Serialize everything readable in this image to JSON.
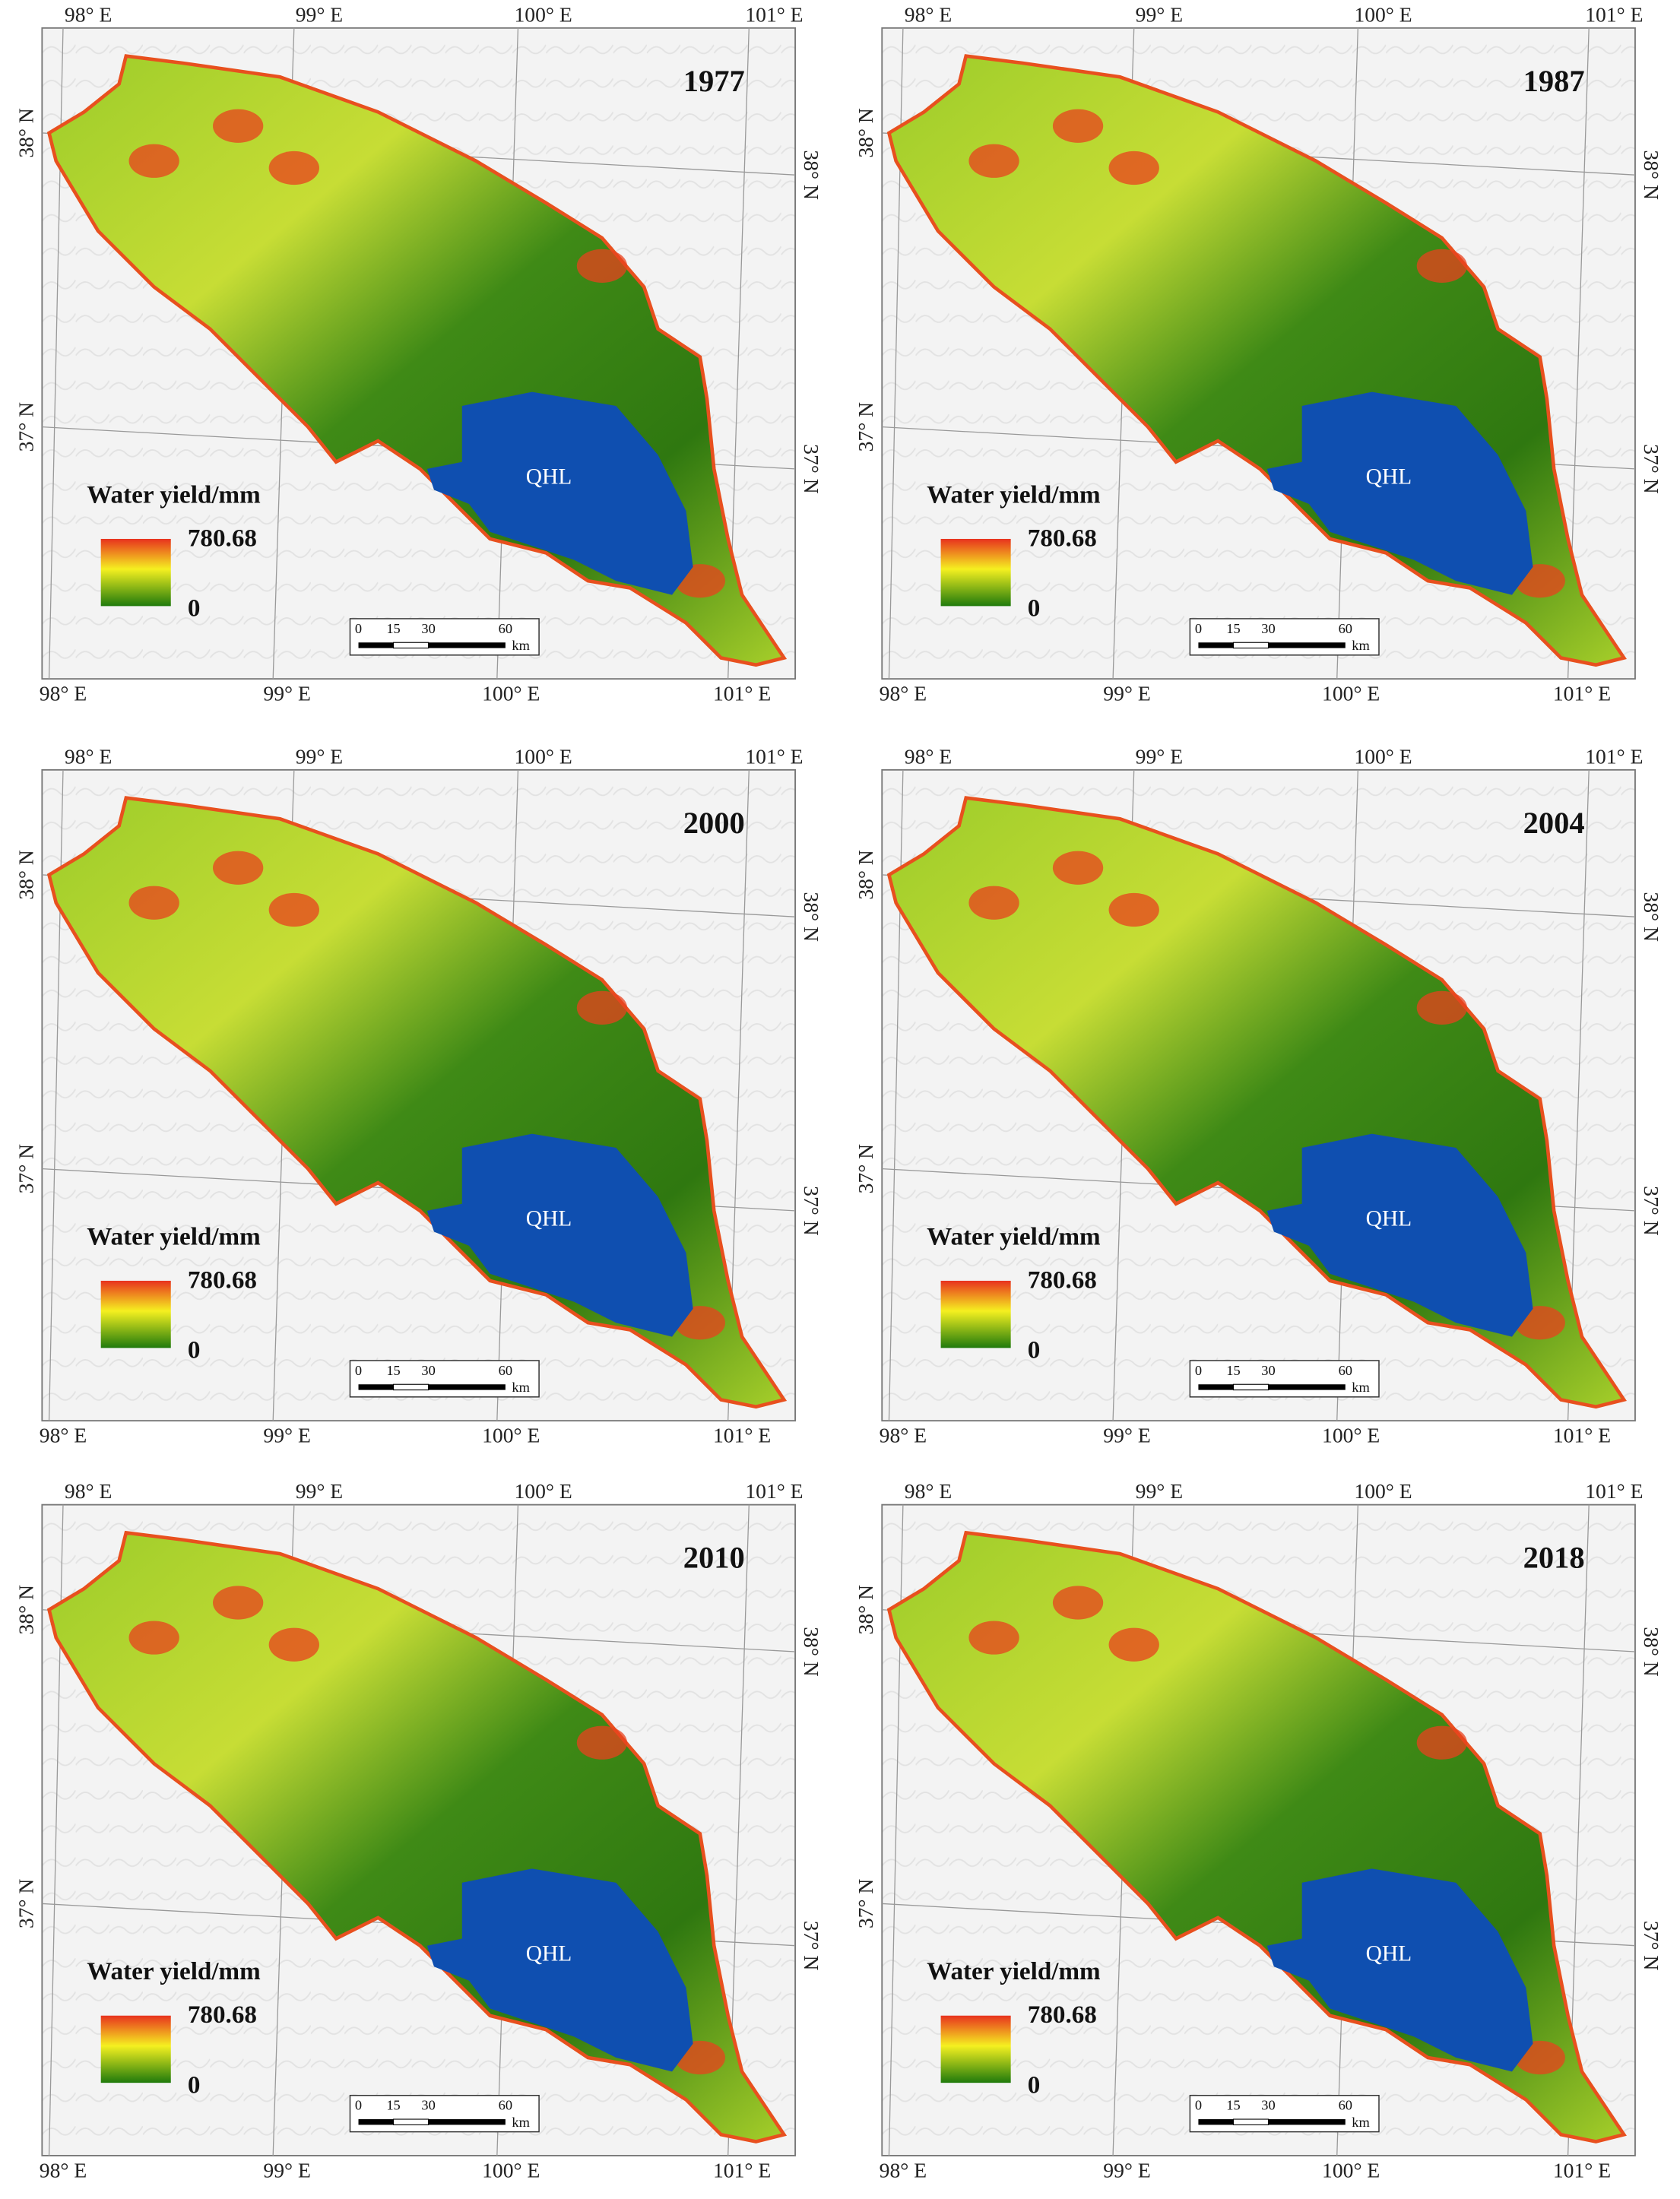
{
  "panels": [
    {
      "year": "1977"
    },
    {
      "year": "1987"
    },
    {
      "year": "2000"
    },
    {
      "year": "2004"
    },
    {
      "year": "2010"
    },
    {
      "year": "2018"
    }
  ],
  "lake_label": "QHL",
  "legend": {
    "title": "Water yield/mm",
    "max": "780.68",
    "min": "0"
  },
  "scale_bar": {
    "ticks": [
      "0",
      "15",
      "30",
      "60"
    ],
    "unit": "km"
  },
  "longitude_labels": [
    "98° E",
    "99° E",
    "100° E",
    "101° E"
  ],
  "latitude_labels": [
    "38° N",
    "37° N"
  ]
}
